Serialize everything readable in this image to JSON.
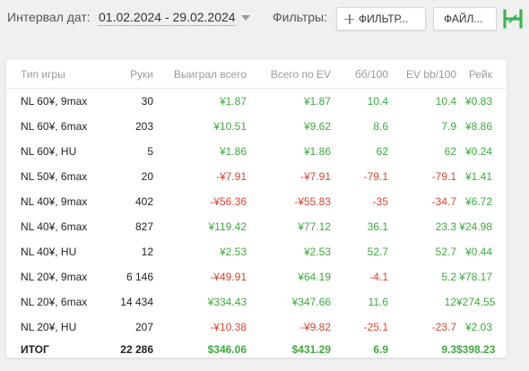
{
  "toolbar": {
    "date_label": "Интервал дат:",
    "date_range": "01.02.2024 - 29.02.2024",
    "filters_label": "Фильтры:",
    "filter_button": "ФИЛЬТР...",
    "file_button": "ФАЙЛ...",
    "logo_icon": "hm-logo-icon",
    "add_icon": "plus-icon"
  },
  "colors": {
    "positive": "#3caa3c",
    "negative": "#d9442e",
    "logo": "#3cb454"
  },
  "table": {
    "headers": [
      "Тип игры",
      "Руки",
      "Выиграл всего",
      "Всего по EV",
      "бб/100",
      "EV bb/100",
      "Рейк"
    ],
    "rows": [
      {
        "game": "NL 60¥, 9max",
        "hands": "30",
        "won": "¥1.87",
        "ev": "¥1.87",
        "bb100": "10.4",
        "evbb100": "10.4",
        "rake": "¥0.83"
      },
      {
        "game": "NL 60¥, 6max",
        "hands": "203",
        "won": "¥10.51",
        "ev": "¥9.62",
        "bb100": "8.6",
        "evbb100": "7.9",
        "rake": "¥8.86"
      },
      {
        "game": "NL 60¥, HU",
        "hands": "5",
        "won": "¥1.86",
        "ev": "¥1.86",
        "bb100": "62",
        "evbb100": "62",
        "rake": "¥0.24"
      },
      {
        "game": "NL 50¥, 6max",
        "hands": "20",
        "won": "-¥7.91",
        "ev": "-¥7.91",
        "bb100": "-79.1",
        "evbb100": "-79.1",
        "rake": "¥1.41"
      },
      {
        "game": "NL 40¥, 9max",
        "hands": "402",
        "won": "-¥56.36",
        "ev": "-¥55.83",
        "bb100": "-35",
        "evbb100": "-34.7",
        "rake": "¥6.72"
      },
      {
        "game": "NL 40¥, 6max",
        "hands": "827",
        "won": "¥119.42",
        "ev": "¥77.12",
        "bb100": "36.1",
        "evbb100": "23.3",
        "rake": "¥24.98"
      },
      {
        "game": "NL 40¥, HU",
        "hands": "12",
        "won": "¥2.53",
        "ev": "¥2.53",
        "bb100": "52.7",
        "evbb100": "52.7",
        "rake": "¥0.44"
      },
      {
        "game": "NL 20¥, 9max",
        "hands": "6 146",
        "won": "-¥49.91",
        "ev": "¥64.19",
        "bb100": "-4.1",
        "evbb100": "5.2",
        "rake": "¥78.17"
      },
      {
        "game": "NL 20¥, 6max",
        "hands": "14 434",
        "won": "¥334.43",
        "ev": "¥347.66",
        "bb100": "11.6",
        "evbb100": "12",
        "rake": "¥274.55"
      },
      {
        "game": "NL 20¥, HU",
        "hands": "207",
        "won": "-¥10.38",
        "ev": "-¥9.82",
        "bb100": "-25.1",
        "evbb100": "-23.7",
        "rake": "¥2.03"
      }
    ],
    "total": {
      "game": "ИТОГ",
      "hands": "22 286",
      "won": "$346.06",
      "ev": "$431.29",
      "bb100": "6.9",
      "evbb100": "9.3",
      "rake": "$398.23"
    }
  }
}
